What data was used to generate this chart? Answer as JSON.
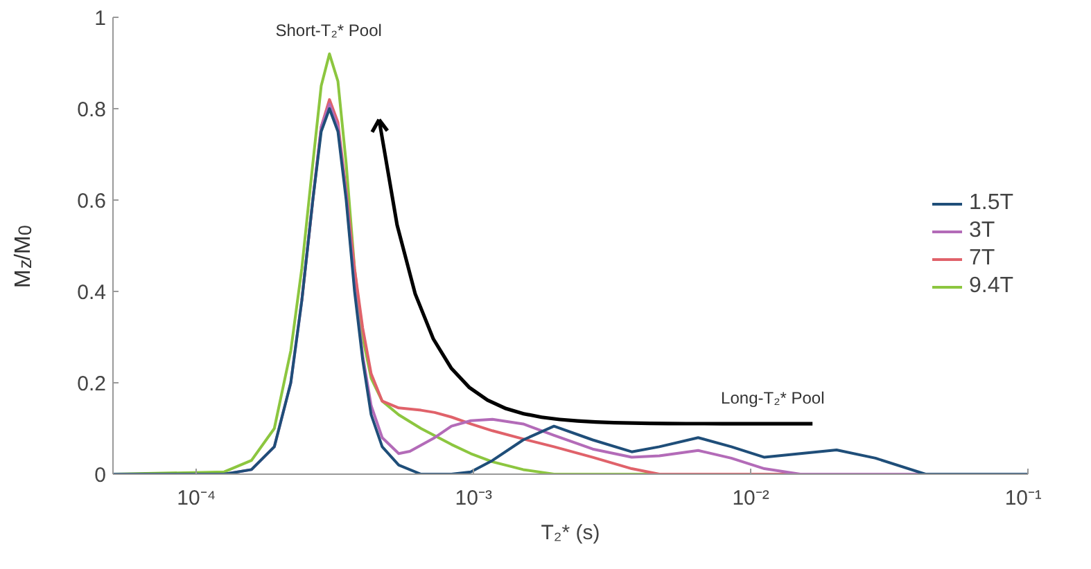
{
  "chart_data": {
    "type": "line",
    "xlabel": "T₂* (s)",
    "ylabel": "M$_{z}$/M$_{0}$",
    "log": "x",
    "xlim": [
      5e-05,
      0.1
    ],
    "xticks": [
      {
        "value": 0.0001,
        "label": "10⁻⁴"
      },
      {
        "value": 0.001,
        "label": "10⁻³"
      },
      {
        "value": 0.01,
        "label": "10⁻²"
      },
      {
        "value": 0.1,
        "label": "10⁻¹"
      }
    ],
    "ylim": [
      0,
      1
    ],
    "yticks": [
      0,
      0.2,
      0.4,
      0.6,
      0.8,
      1
    ],
    "grid": false,
    "legend": "right",
    "marker": "none",
    "line_style": "solid",
    "annotations": [
      "Short-T₂* Pool",
      "Long-T₂* Pool"
    ],
    "series": [
      {
        "name": "1.5T",
        "color": "#1f4e79",
        "x": [
          5e-05,
          0.000126,
          0.000158,
          0.000191,
          0.000219,
          0.00024,
          0.000263,
          0.000282,
          0.000302,
          0.000324,
          0.000347,
          0.000372,
          0.000398,
          0.000427,
          0.000468,
          0.000537,
          0.000646,
          0.000832,
          0.000977,
          0.00117,
          0.00151,
          0.00195,
          0.00269,
          0.00372,
          0.00468,
          0.00646,
          0.00851,
          0.0112,
          0.0151,
          0.0204,
          0.0282,
          0.0427,
          0.1
        ],
        "values": [
          0,
          0,
          0.01,
          0.06,
          0.2,
          0.38,
          0.6,
          0.75,
          0.8,
          0.75,
          0.6,
          0.4,
          0.25,
          0.13,
          0.06,
          0.02,
          0,
          0,
          0.005,
          0.03,
          0.075,
          0.105,
          0.075,
          0.049,
          0.06,
          0.08,
          0.06,
          0.037,
          0.045,
          0.053,
          0.035,
          0,
          0
        ]
      },
      {
        "name": "3T",
        "color": "#b36bb8",
        "x": [
          5e-05,
          0.000126,
          0.000158,
          0.000191,
          0.000219,
          0.00024,
          0.000263,
          0.000282,
          0.000302,
          0.000324,
          0.000347,
          0.000372,
          0.000398,
          0.000427,
          0.000468,
          0.000537,
          0.000589,
          0.000724,
          0.000832,
          0.000977,
          0.00117,
          0.00151,
          0.00195,
          0.00269,
          0.00372,
          0.00468,
          0.00646,
          0.00851,
          0.0112,
          0.0151,
          0.1
        ],
        "values": [
          0,
          0,
          0.01,
          0.06,
          0.2,
          0.38,
          0.6,
          0.76,
          0.81,
          0.76,
          0.61,
          0.41,
          0.26,
          0.15,
          0.08,
          0.045,
          0.05,
          0.08,
          0.105,
          0.117,
          0.12,
          0.11,
          0.085,
          0.055,
          0.037,
          0.04,
          0.052,
          0.035,
          0.012,
          0,
          0
        ]
      },
      {
        "name": "7T",
        "color": "#e0626a",
        "x": [
          0.00024,
          0.000263,
          0.000282,
          0.000302,
          0.000324,
          0.000347,
          0.000372,
          0.000398,
          0.000427,
          0.000468,
          0.000537,
          0.000646,
          0.000724,
          0.000832,
          0.000977,
          0.00117,
          0.00151,
          0.00195,
          0.00269,
          0.00372,
          0.00468,
          0.1
        ],
        "values": [
          0.38,
          0.6,
          0.76,
          0.82,
          0.77,
          0.62,
          0.45,
          0.32,
          0.22,
          0.16,
          0.145,
          0.14,
          0.135,
          0.125,
          0.11,
          0.095,
          0.077,
          0.06,
          0.037,
          0.012,
          0,
          0
        ]
      },
      {
        "name": "9.4T",
        "color": "#8cc63f",
        "x": [
          5e-05,
          0.000126,
          0.000158,
          0.000191,
          0.000219,
          0.00024,
          0.000263,
          0.000282,
          0.000302,
          0.000324,
          0.000347,
          0.000372,
          0.000398,
          0.000427,
          0.000468,
          0.000537,
          0.000646,
          0.000832,
          0.000977,
          0.00117,
          0.00151,
          0.00195,
          0.1
        ],
        "values": [
          0,
          0.005,
          0.03,
          0.1,
          0.27,
          0.45,
          0.68,
          0.85,
          0.92,
          0.86,
          0.68,
          0.45,
          0.3,
          0.21,
          0.16,
          0.13,
          0.1,
          0.065,
          0.045,
          0.027,
          0.01,
          0,
          0
        ]
      }
    ]
  }
}
